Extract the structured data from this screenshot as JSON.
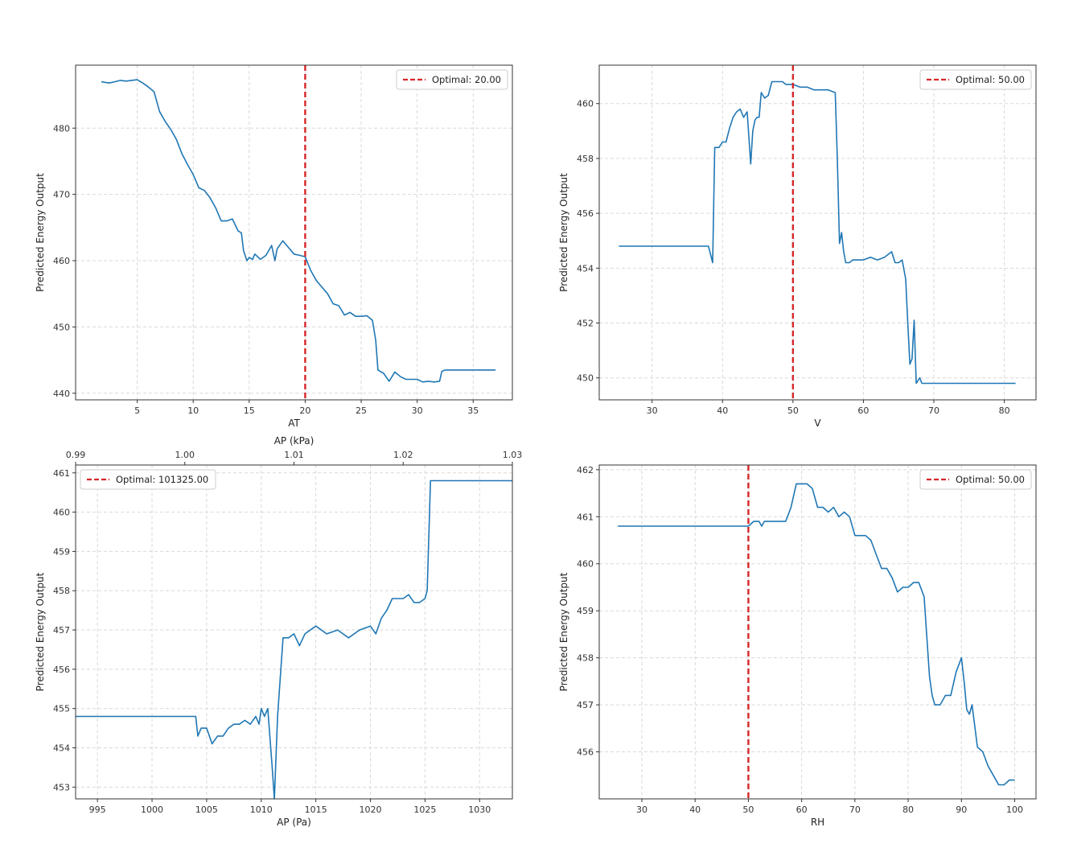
{
  "colors": {
    "line": "#1f77b4",
    "optimal": "#d62728"
  },
  "chart_data": [
    {
      "type": "line",
      "title": "",
      "xlabel": "AT",
      "ylabel": "Predicted Energy Output",
      "xlim": [
        -0.5,
        38.5
      ],
      "ylim": [
        439,
        489.5
      ],
      "xticks": [
        5,
        10,
        15,
        20,
        25,
        30,
        35
      ],
      "yticks": [
        440,
        450,
        460,
        470,
        480
      ],
      "grid": true,
      "legend_position": "top-right",
      "legend_label": "Optimal: 20.00",
      "optimal_x": 20,
      "series": [
        {
          "x": [
            1.8,
            2.5,
            3,
            3.5,
            4,
            5,
            5.5,
            6,
            6.5,
            7,
            7.5,
            8,
            8.5,
            9,
            9.5,
            10,
            10.5,
            11,
            11.5,
            12,
            12.5,
            13,
            13.5,
            14,
            14.3,
            14.5,
            14.8,
            15,
            15.3,
            15.5,
            16,
            16.5,
            17,
            17.3,
            17.5,
            18,
            18.5,
            19,
            19.5,
            20,
            20.5,
            21,
            21.5,
            22,
            22.5,
            23,
            23.5,
            24,
            24.5,
            25,
            25.5,
            26,
            26.3,
            26.5,
            27,
            27.5,
            28,
            28.3,
            28.5,
            29,
            29.5,
            30,
            30.5,
            31,
            31.5,
            32,
            32.2,
            32.5,
            37
          ],
          "values": [
            487,
            486.8,
            487,
            487.2,
            487.1,
            487.3,
            486.8,
            486.2,
            485.5,
            482.5,
            481,
            479.8,
            478.3,
            476.1,
            474.5,
            473,
            471,
            470.6,
            469.5,
            468,
            466,
            466,
            466.3,
            464.5,
            464.2,
            461.5,
            460,
            460.5,
            460.2,
            461,
            460.2,
            460.8,
            462.3,
            460,
            461.8,
            463,
            462,
            461,
            460.8,
            460.6,
            458.5,
            457,
            456,
            455,
            453.5,
            453.2,
            451.8,
            452.2,
            451.6,
            451.6,
            451.7,
            451,
            448,
            443.5,
            443,
            441.8,
            443.2,
            442.8,
            442.5,
            442.1,
            442.1,
            442.1,
            441.7,
            441.8,
            441.7,
            441.8,
            443.3,
            443.5,
            443.5
          ]
        }
      ]
    },
    {
      "type": "line",
      "title": "",
      "xlabel": "V",
      "ylabel": "Predicted Energy Output",
      "xlim": [
        22.5,
        84.5
      ],
      "ylim": [
        449.2,
        461.4
      ],
      "xticks": [
        30,
        40,
        50,
        60,
        70,
        80
      ],
      "yticks": [
        450,
        452,
        454,
        456,
        458,
        460
      ],
      "grid": true,
      "legend_position": "top-right",
      "legend_label": "Optimal: 50.00",
      "optimal_x": 50,
      "series": [
        {
          "x": [
            25.3,
            38,
            38.3,
            38.6,
            38.9,
            39.2,
            39.5,
            40,
            40.5,
            41,
            41.5,
            42,
            42.5,
            43,
            43.5,
            44,
            44.3,
            44.6,
            44.9,
            45.2,
            45.5,
            46,
            46.5,
            47,
            47.5,
            48,
            48.5,
            49,
            49.5,
            50,
            51,
            52,
            53,
            54,
            55,
            56,
            56.3,
            56.6,
            56.9,
            57.2,
            57.5,
            58,
            58.5,
            59,
            60,
            61,
            62,
            63,
            64,
            64.5,
            65,
            65.5,
            66,
            66.3,
            66.6,
            66.9,
            67.2,
            67.5,
            68,
            68.3,
            68.6,
            68.9,
            69.2,
            69.5,
            70,
            81.6
          ],
          "values": [
            454.8,
            454.8,
            454.5,
            454.2,
            458.4,
            458.4,
            458.4,
            458.6,
            458.6,
            459.1,
            459.5,
            459.7,
            459.8,
            459.5,
            459.7,
            457.8,
            459,
            459.4,
            459.5,
            459.5,
            460.4,
            460.2,
            460.3,
            460.8,
            460.8,
            460.8,
            460.8,
            460.7,
            460.7,
            460.7,
            460.6,
            460.6,
            460.5,
            460.5,
            460.5,
            460.4,
            458,
            454.9,
            455.3,
            454.6,
            454.2,
            454.2,
            454.3,
            454.3,
            454.3,
            454.4,
            454.3,
            454.4,
            454.6,
            454.2,
            454.2,
            454.3,
            453.6,
            452,
            450.5,
            450.7,
            452.1,
            449.8,
            450,
            449.8,
            449.8,
            449.8,
            449.8,
            449.8,
            449.8,
            449.8
          ]
        }
      ]
    },
    {
      "type": "line",
      "title": "",
      "xlabel": "AP (Pa)",
      "top_xlabel": "AP (kPa)",
      "ylabel": "Predicted Energy Output",
      "xlim": [
        993,
        1033
      ],
      "ylim": [
        452.7,
        461.2
      ],
      "xticks": [
        995,
        1000,
        1005,
        1010,
        1015,
        1020,
        1025,
        1030
      ],
      "top_xticks": [
        "0.99",
        "1.00",
        "1.01",
        "1.02",
        "1.03"
      ],
      "yticks": [
        453,
        454,
        455,
        456,
        457,
        458,
        459,
        460,
        461
      ],
      "grid": true,
      "legend_position": "top-left",
      "legend_label": "Optimal: 101325.00",
      "series": [
        {
          "x": [
            993,
            1004,
            1004.2,
            1004.5,
            1005,
            1005.5,
            1006,
            1006.5,
            1007,
            1007.5,
            1008,
            1008.5,
            1009,
            1009.5,
            1009.8,
            1010,
            1010.3,
            1010.6,
            1011,
            1011.2,
            1011.5,
            1012,
            1012.5,
            1013,
            1013.5,
            1014,
            1015,
            1016,
            1017,
            1018,
            1019,
            1020,
            1020.5,
            1021,
            1021.5,
            1022,
            1023,
            1023.5,
            1024,
            1024.5,
            1025,
            1025.2,
            1025.5,
            1033
          ],
          "values": [
            454.8,
            454.8,
            454.3,
            454.5,
            454.5,
            454.1,
            454.3,
            454.3,
            454.5,
            454.6,
            454.6,
            454.7,
            454.6,
            454.8,
            454.6,
            455,
            454.8,
            455,
            453.5,
            452.7,
            454.8,
            456.8,
            456.8,
            456.9,
            456.6,
            456.9,
            457.1,
            456.9,
            457,
            456.8,
            457,
            457.1,
            456.9,
            457.3,
            457.5,
            457.8,
            457.8,
            457.9,
            457.7,
            457.7,
            457.8,
            458,
            460.8,
            460.8
          ]
        }
      ]
    },
    {
      "type": "line",
      "title": "",
      "xlabel": "RH",
      "ylabel": "Predicted Energy Output",
      "xlim": [
        22,
        104
      ],
      "ylim": [
        455,
        462.1
      ],
      "xticks": [
        30,
        40,
        50,
        60,
        70,
        80,
        90,
        100
      ],
      "yticks": [
        456,
        457,
        458,
        459,
        460,
        461,
        462
      ],
      "grid": true,
      "legend_position": "top-right",
      "legend_label": "Optimal: 50.00",
      "optimal_x": 50,
      "series": [
        {
          "x": [
            25.5,
            50,
            51,
            52,
            52.5,
            53,
            55,
            57,
            58,
            59,
            60,
            61,
            62,
            63,
            64,
            65,
            66,
            67,
            68,
            69,
            70,
            71,
            72,
            73,
            74,
            75,
            76,
            77,
            78,
            79,
            80,
            81,
            82,
            83,
            84,
            84.5,
            85,
            86,
            87,
            88,
            89,
            90,
            90.5,
            91,
            91.5,
            92,
            93,
            94,
            95,
            96,
            97,
            98,
            99,
            100
          ],
          "values": [
            460.8,
            460.8,
            460.9,
            460.9,
            460.8,
            460.9,
            460.9,
            460.9,
            461.2,
            461.7,
            461.7,
            461.7,
            461.6,
            461.2,
            461.2,
            461.1,
            461.2,
            461,
            461.1,
            461,
            460.6,
            460.6,
            460.6,
            460.5,
            460.2,
            459.9,
            459.9,
            459.7,
            459.4,
            459.5,
            459.5,
            459.6,
            459.6,
            459.3,
            457.6,
            457.2,
            457,
            457,
            457.2,
            457.2,
            457.7,
            458,
            457.5,
            456.9,
            456.8,
            457,
            456.1,
            456,
            455.7,
            455.5,
            455.3,
            455.3,
            455.4,
            455.4
          ]
        }
      ]
    }
  ]
}
